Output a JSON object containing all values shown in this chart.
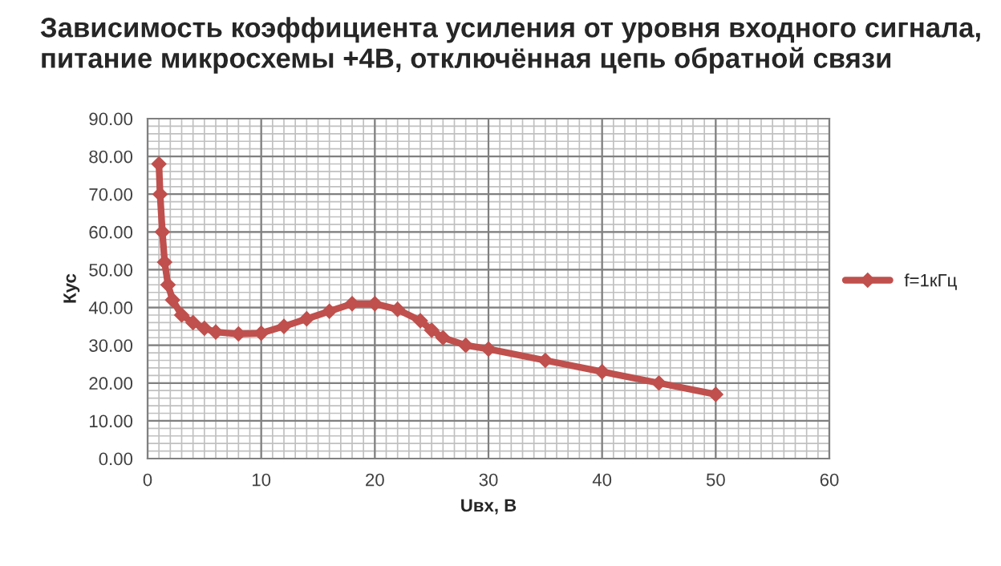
{
  "chart_data": {
    "type": "line",
    "title": "Зависимость коэффициента усиления от уровня входного сигнала,\nпитание микросхемы +4В, отключённая цепь обратной связи",
    "xlabel": "Uвх, В",
    "ylabel": "Кус",
    "series": [
      {
        "name": "f=1кГц",
        "color": "#c0504d",
        "x": [
          1,
          1.1,
          1.3,
          1.5,
          1.8,
          2.2,
          3,
          4,
          5,
          6,
          8,
          10,
          12,
          14,
          16,
          18,
          20,
          22,
          24,
          25,
          26,
          28,
          30,
          35,
          40,
          45,
          50
        ],
        "values": [
          78,
          70,
          60,
          52,
          46,
          42,
          38,
          36,
          34.5,
          33.5,
          33,
          33.2,
          35,
          37,
          39,
          41,
          41,
          39.5,
          36.5,
          34,
          32,
          30,
          29,
          26,
          23,
          20,
          17
        ]
      }
    ],
    "xlim": [
      0,
      60
    ],
    "xticks": [
      0,
      10,
      20,
      30,
      40,
      50,
      60
    ],
    "ylim": [
      0,
      90
    ],
    "yticks": [
      {
        "value": 0,
        "label": "0.00"
      },
      {
        "value": 10,
        "label": "10.00"
      },
      {
        "value": 20,
        "label": "20.00"
      },
      {
        "value": 30,
        "label": "30.00"
      },
      {
        "value": 40,
        "label": "40.00"
      },
      {
        "value": 50,
        "label": "50.00"
      },
      {
        "value": 60,
        "label": "60.00"
      },
      {
        "value": 70,
        "label": "70.00"
      },
      {
        "value": 80,
        "label": "80.00"
      },
      {
        "value": 90,
        "label": "90.00"
      }
    ],
    "grid": true,
    "legend": "right",
    "marker": "diamond",
    "line_style": "solid"
  }
}
